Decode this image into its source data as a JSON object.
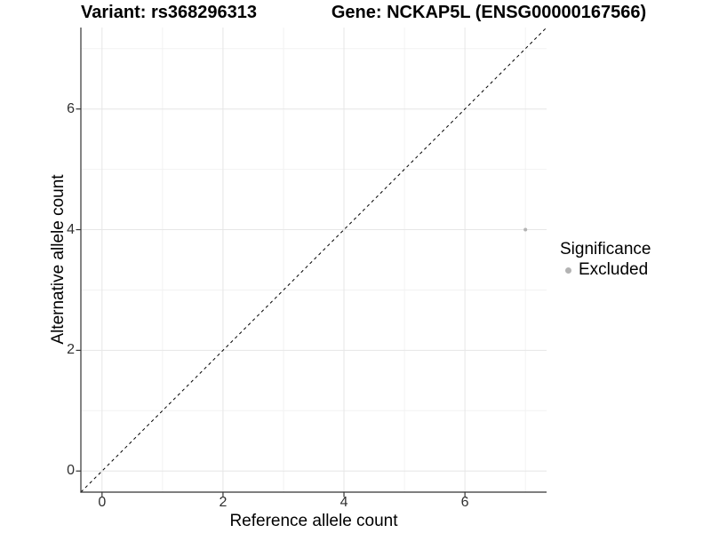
{
  "figure": {
    "title_left": "Variant: rs368296313",
    "title_right": "Gene: NCKAP5L (ENSG00000167566)"
  },
  "axes": {
    "x_title": "Reference allele count",
    "y_title": "Alternative allele count"
  },
  "legend": {
    "title": "Significance",
    "items": [
      {
        "label": "Excluded",
        "color": "#b3b3b3"
      }
    ]
  },
  "colors": {
    "point": "#b3b3b3",
    "grid_major": "#e6e6e6",
    "grid_minor": "#f2f2f2",
    "axis_line": "#333333",
    "tick_text": "#303030",
    "identity_line": "#000000",
    "background": "#ffffff"
  },
  "chart_data": {
    "type": "scatter",
    "title": "Variant: rs368296313 / Gene: NCKAP5L (ENSG00000167566)",
    "xlabel": "Reference allele count",
    "ylabel": "Alternative allele count",
    "xlim": [
      -0.35,
      7.35
    ],
    "ylim": [
      -0.35,
      7.35
    ],
    "x_major_ticks": [
      0,
      2,
      4,
      6
    ],
    "y_major_ticks": [
      0,
      2,
      4,
      6
    ],
    "x_minor_ticks": [
      1,
      3,
      5,
      7
    ],
    "y_minor_ticks": [
      1,
      3,
      5,
      7
    ],
    "grid": true,
    "legend_position": "right",
    "identity_line": {
      "style": "dashed",
      "from": [
        -0.35,
        -0.35
      ],
      "to": [
        7.35,
        7.35
      ]
    },
    "series": [
      {
        "name": "Excluded",
        "color": "#b3b3b3",
        "points": [
          {
            "x": 7,
            "y": 4
          }
        ]
      }
    ]
  }
}
